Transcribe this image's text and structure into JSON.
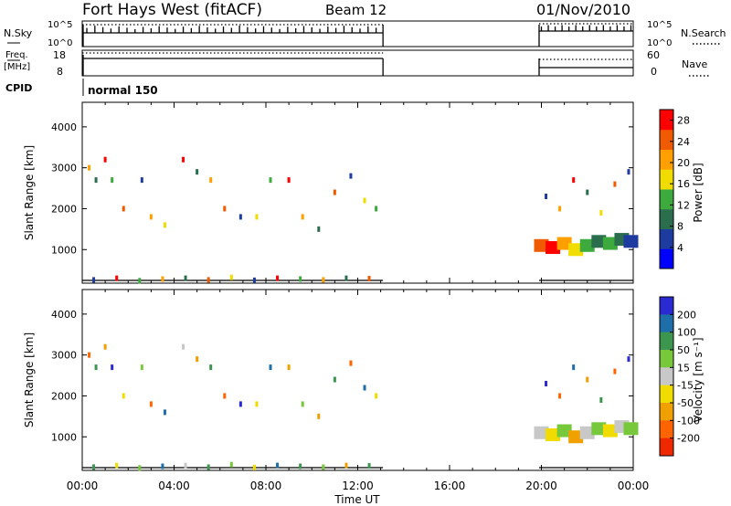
{
  "header": {
    "title": "Fort Hays West (fitACF)",
    "beam": "Beam 12",
    "date": "01/Nov/2010"
  },
  "status_panels": {
    "nsky": {
      "label": "N.Sky",
      "ticks": [
        "10^5",
        "10^0"
      ]
    },
    "nsearch": {
      "label": "N.Search",
      "ticks": [
        "10^5",
        "10^0"
      ]
    },
    "freq": {
      "label_line1": "Freq.",
      "label_line2": "[MHz]",
      "ticks": [
        "18",
        "8"
      ]
    },
    "nave": {
      "label": "Nave",
      "ticks": [
        "60",
        "0"
      ]
    },
    "cpid": {
      "label": "CPID",
      "value": "normal 150"
    }
  },
  "colors": {
    "power_scale": [
      "#0000ff",
      "#1e3ca0",
      "#2b6e4e",
      "#3caa3c",
      "#f0dc00",
      "#ffa000",
      "#f05a00",
      "#ff0000"
    ],
    "velocity_scale": [
      "#2a2ad2",
      "#1e6eaa",
      "#3c9650",
      "#78c83c",
      "#c8c8c8",
      "#f0dc00",
      "#f0a000",
      "#ff6400",
      "#f02800"
    ]
  },
  "chart_data": [
    {
      "type": "scatter",
      "title": "",
      "panel": "power",
      "xlabel": "",
      "ylabel": "Slant Range [km]",
      "x_ticks": [
        "00:00",
        "04:00",
        "08:00",
        "12:00",
        "16:00",
        "20:00",
        "00:00"
      ],
      "xlim_hours": [
        0,
        24
      ],
      "y_ticks": [
        1000,
        2000,
        3000,
        4000
      ],
      "ylim": [
        180,
        4600
      ],
      "data_gap_hours": [
        13.1,
        19.9
      ],
      "colorbar": {
        "label": "Power [dB]",
        "ticks": [
          4,
          8,
          12,
          16,
          20,
          24,
          28
        ],
        "range": [
          0,
          30
        ]
      },
      "series": [
        {
          "hours": [
            0.3,
            0.6,
            1.0,
            1.3,
            1.8,
            2.6,
            3.0,
            3.6,
            4.4,
            5.0,
            5.6,
            6.2,
            6.9,
            7.6,
            8.2,
            9.0,
            9.6,
            10.3,
            11.0,
            11.7,
            12.3,
            12.8
          ],
          "range_km": [
            3000,
            2700,
            3200,
            2700,
            2000,
            2700,
            1800,
            1600,
            3200,
            2900,
            2700,
            2000,
            1800,
            1800,
            2700,
            2700,
            1800,
            1500,
            2400,
            2800,
            2200,
            2000
          ],
          "power_db": [
            20,
            8,
            28,
            12,
            24,
            4,
            20,
            16,
            28,
            8,
            20,
            24,
            4,
            16,
            12,
            28,
            20,
            8,
            24,
            4,
            16,
            12
          ]
        },
        {
          "hours": [
            0.5,
            1.5,
            2.5,
            3.5,
            4.5,
            5.5,
            6.5,
            7.5,
            8.5,
            9.5,
            10.5,
            11.5,
            12.5
          ],
          "range_km": [
            260,
            300,
            240,
            280,
            300,
            260,
            320,
            250,
            300,
            280,
            260,
            300,
            290
          ],
          "power_db": [
            4,
            28,
            12,
            20,
            8,
            24,
            16,
            4,
            28,
            12,
            20,
            8,
            24
          ]
        },
        {
          "hours": [
            20.0,
            20.5,
            21.0,
            21.5,
            22.0,
            22.5,
            23.0,
            23.5,
            23.9
          ],
          "range_km": [
            1100,
            1050,
            1150,
            1000,
            1100,
            1200,
            1150,
            1250,
            1200
          ],
          "power_db": [
            24,
            28,
            20,
            16,
            12,
            8,
            12,
            8,
            4
          ]
        },
        {
          "hours": [
            20.2,
            20.8,
            21.4,
            22.0,
            22.6,
            23.2,
            23.8
          ],
          "range_km": [
            2300,
            2000,
            2700,
            2400,
            1900,
            2600,
            2900
          ],
          "power_db": [
            4,
            20,
            28,
            8,
            16,
            24,
            4
          ]
        }
      ]
    },
    {
      "type": "scatter",
      "title": "",
      "panel": "velocity",
      "xlabel": "Time UT",
      "ylabel": "Slant Range [km]",
      "x_ticks": [
        "00:00",
        "04:00",
        "08:00",
        "12:00",
        "16:00",
        "20:00",
        "00:00"
      ],
      "xlim_hours": [
        0,
        24
      ],
      "y_ticks": [
        1000,
        2000,
        3000,
        4000
      ],
      "ylim": [
        180,
        4600
      ],
      "data_gap_hours": [
        13.1,
        19.9
      ],
      "colorbar": {
        "label": "Velocity [m s⁻¹]",
        "ticks": [
          200,
          100,
          50,
          15,
          -15,
          -50,
          -100,
          -200
        ]
      },
      "series": [
        {
          "hours": [
            0.3,
            0.6,
            1.0,
            1.3,
            1.8,
            2.6,
            3.0,
            3.6,
            4.4,
            5.0,
            5.6,
            6.2,
            6.9,
            7.6,
            8.2,
            9.0,
            9.6,
            10.3,
            11.0,
            11.7,
            12.3,
            12.8
          ],
          "range_km": [
            3000,
            2700,
            3200,
            2700,
            2000,
            2700,
            1800,
            1600,
            3200,
            2900,
            2700,
            2000,
            1800,
            1800,
            2700,
            2700,
            1800,
            1500,
            2400,
            2800,
            2200,
            2000
          ],
          "velocity_ms": [
            -200,
            50,
            -100,
            200,
            -50,
            15,
            -200,
            100,
            -15,
            -100,
            50,
            -200,
            200,
            -50,
            100,
            -150,
            15,
            -100,
            50,
            -200,
            100,
            -50
          ]
        },
        {
          "hours": [
            0.5,
            1.5,
            2.5,
            3.5,
            4.5,
            5.5,
            6.5,
            7.5,
            8.5,
            9.5,
            10.5,
            11.5,
            12.5
          ],
          "range_km": [
            260,
            300,
            240,
            280,
            300,
            260,
            320,
            250,
            300,
            280,
            260,
            300,
            290
          ],
          "velocity_ms": [
            50,
            -50,
            15,
            100,
            -15,
            50,
            15,
            -50,
            100,
            50,
            15,
            -100,
            50
          ]
        },
        {
          "hours": [
            20.0,
            20.5,
            21.0,
            21.5,
            22.0,
            22.5,
            23.0,
            23.5,
            23.9
          ],
          "range_km": [
            1100,
            1050,
            1150,
            1000,
            1100,
            1200,
            1150,
            1250,
            1200
          ],
          "velocity_ms": [
            -15,
            -50,
            15,
            -100,
            -15,
            15,
            -50,
            -15,
            15
          ]
        },
        {
          "hours": [
            20.2,
            20.8,
            21.4,
            22.0,
            22.6,
            23.2,
            23.8
          ],
          "range_km": [
            2300,
            2000,
            2700,
            2400,
            1900,
            2600,
            2900
          ],
          "velocity_ms": [
            200,
            -200,
            100,
            -100,
            50,
            -200,
            200
          ]
        }
      ]
    }
  ]
}
